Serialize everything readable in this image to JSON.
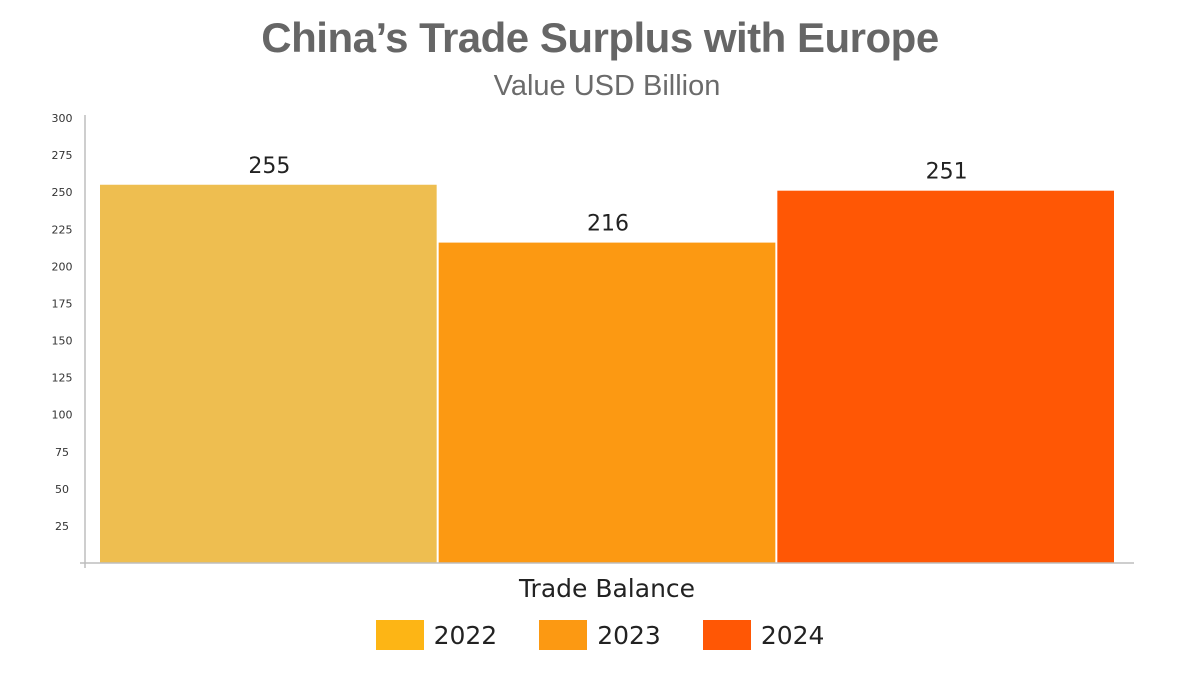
{
  "chart_data": {
    "type": "bar",
    "title": "China’s Trade Surplus with Europe",
    "subtitle": "Value USD Billion",
    "xlabel": "Trade Balance",
    "ylabel": "",
    "categories": [
      "Trade Balance"
    ],
    "series": [
      {
        "name": "2022",
        "values": [
          255
        ],
        "color": "#EEBE50",
        "legend_color": "#FDB515"
      },
      {
        "name": "2023",
        "values": [
          216
        ],
        "color": "#FC9912",
        "legend_color": "#FC9912"
      },
      {
        "name": "2024",
        "values": [
          251
        ],
        "color": "#FF5705",
        "legend_color": "#FF5705"
      }
    ],
    "ylim": [
      0,
      300
    ],
    "yticks": [
      "300",
      "275",
      "250",
      "225",
      "200",
      "175",
      "150",
      "125",
      "100",
      "75",
      "50",
      "25"
    ],
    "ytick_values": [
      300,
      275,
      250,
      225,
      200,
      175,
      150,
      125,
      100,
      75,
      50,
      25
    ],
    "grid": false,
    "legend_position": "bottom"
  }
}
